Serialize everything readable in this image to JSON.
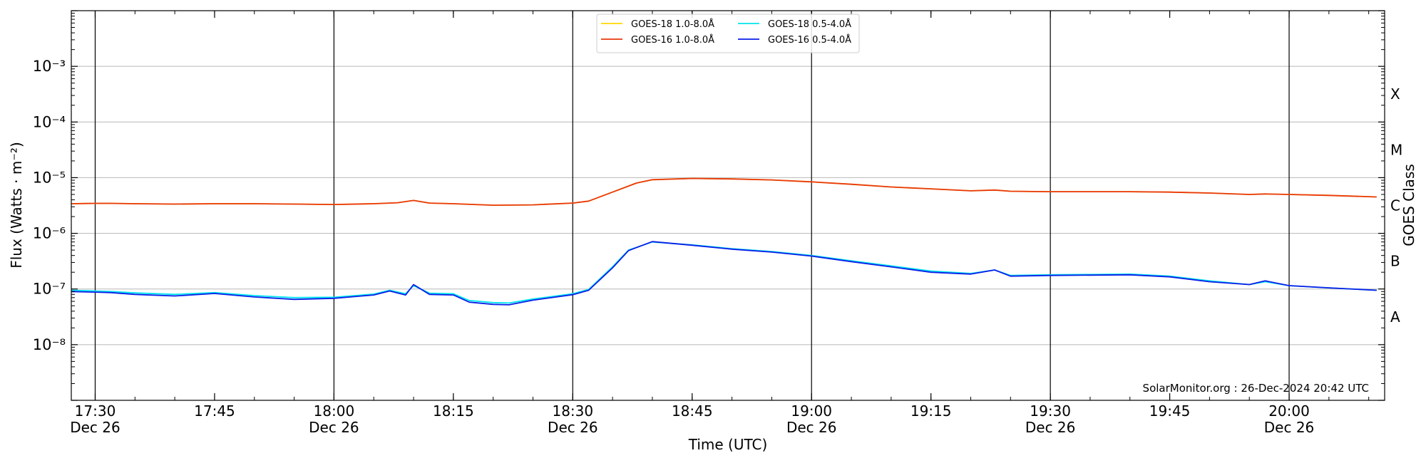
{
  "chart_data": {
    "type": "line",
    "xlabel": "Time (UTC)",
    "ylabel": "Flux (Watts · m⁻²)",
    "y2label": "GOES Class",
    "credit": "SolarMonitor.org : 26-Dec-2024 20:42 UTC",
    "y_scale": "log",
    "ylim": [
      1e-09,
      0.01
    ],
    "y_ticks": [
      "10⁻³",
      "10⁻⁴",
      "10⁻⁵",
      "10⁻⁶",
      "10⁻⁷",
      "10⁻⁸"
    ],
    "y_tick_exponents": [
      -3,
      -4,
      -5,
      -6,
      -7,
      -8
    ],
    "xlim": [
      "17:27",
      "20:12"
    ],
    "x_ticks": [
      {
        "t": "17:30",
        "label": "17:30",
        "sublabel": "Dec 26"
      },
      {
        "t": "17:45",
        "label": "17:45",
        "sublabel": ""
      },
      {
        "t": "18:00",
        "label": "18:00",
        "sublabel": "Dec 26"
      },
      {
        "t": "18:15",
        "label": "18:15",
        "sublabel": ""
      },
      {
        "t": "18:30",
        "label": "18:30",
        "sublabel": "Dec 26"
      },
      {
        "t": "18:45",
        "label": "18:45",
        "sublabel": ""
      },
      {
        "t": "19:00",
        "label": "19:00",
        "sublabel": "Dec 26"
      },
      {
        "t": "19:15",
        "label": "19:15",
        "sublabel": ""
      },
      {
        "t": "19:30",
        "label": "19:30",
        "sublabel": "Dec 26"
      },
      {
        "t": "19:45",
        "label": "19:45",
        "sublabel": ""
      },
      {
        "t": "20:00",
        "label": "20:00",
        "sublabel": "Dec 26"
      }
    ],
    "vlines": [
      "17:30",
      "18:00",
      "18:30",
      "19:00",
      "19:30",
      "20:00"
    ],
    "goes_classes": [
      {
        "label": "A",
        "exponent": -7.5
      },
      {
        "label": "B",
        "exponent": -6.5
      },
      {
        "label": "C",
        "exponent": -5.5
      },
      {
        "label": "M",
        "exponent": -4.5
      },
      {
        "label": "X",
        "exponent": -3.5
      }
    ],
    "grid": true,
    "legend_position": "top-center",
    "series": [
      {
        "name": "GOES-18 1.0-8.0Å",
        "color": "#ffd700",
        "x": [
          "17:27",
          "17:30",
          "17:32",
          "17:35",
          "17:40",
          "17:45",
          "17:50",
          "17:55",
          "18:00",
          "18:05",
          "18:08",
          "18:10",
          "18:12",
          "18:15",
          "18:20",
          "18:25",
          "18:30",
          "18:32",
          "18:35",
          "18:38",
          "18:40",
          "18:45",
          "18:50",
          "18:55",
          "19:00",
          "19:05",
          "19:10",
          "19:15",
          "19:20",
          "19:23",
          "19:25",
          "19:30",
          "19:40",
          "19:45",
          "19:50",
          "19:55",
          "19:57",
          "20:00",
          "20:05",
          "20:11"
        ],
        "y": [
          3.4e-06,
          3.45e-06,
          3.45e-06,
          3.4e-06,
          3.35e-06,
          3.4e-06,
          3.4e-06,
          3.35e-06,
          3.3e-06,
          3.4e-06,
          3.55e-06,
          3.9e-06,
          3.5e-06,
          3.4e-06,
          3.2e-06,
          3.25e-06,
          3.5e-06,
          3.8e-06,
          5.5e-06,
          8e-06,
          9.2e-06,
          9.7e-06,
          9.5e-06,
          9.1e-06,
          8.4e-06,
          7.6e-06,
          6.8e-06,
          6.3e-06,
          5.8e-06,
          6e-06,
          5.7e-06,
          5.6e-06,
          5.6e-06,
          5.5e-06,
          5.3e-06,
          5e-06,
          5.1e-06,
          5e-06,
          4.8e-06,
          4.5e-06
        ]
      },
      {
        "name": "GOES-16 1.0-8.0Å",
        "color": "#e8380d",
        "x": [
          "17:27",
          "17:30",
          "17:32",
          "17:35",
          "17:40",
          "17:45",
          "17:50",
          "17:55",
          "18:00",
          "18:05",
          "18:08",
          "18:10",
          "18:12",
          "18:15",
          "18:20",
          "18:25",
          "18:30",
          "18:32",
          "18:35",
          "18:38",
          "18:40",
          "18:45",
          "18:50",
          "18:55",
          "19:00",
          "19:05",
          "19:10",
          "19:15",
          "19:20",
          "19:23",
          "19:25",
          "19:30",
          "19:40",
          "19:45",
          "19:50",
          "19:55",
          "19:57",
          "20:00",
          "20:05",
          "20:11"
        ],
        "y": [
          3.4e-06,
          3.45e-06,
          3.45e-06,
          3.4e-06,
          3.35e-06,
          3.4e-06,
          3.4e-06,
          3.35e-06,
          3.3e-06,
          3.4e-06,
          3.55e-06,
          3.9e-06,
          3.5e-06,
          3.4e-06,
          3.2e-06,
          3.25e-06,
          3.5e-06,
          3.8e-06,
          5.5e-06,
          8e-06,
          9.2e-06,
          9.7e-06,
          9.5e-06,
          9.1e-06,
          8.4e-06,
          7.6e-06,
          6.8e-06,
          6.3e-06,
          5.8e-06,
          6e-06,
          5.7e-06,
          5.6e-06,
          5.6e-06,
          5.5e-06,
          5.3e-06,
          5e-06,
          5.1e-06,
          5e-06,
          4.8e-06,
          4.5e-06
        ]
      },
      {
        "name": "GOES-18 0.5-4.0Å",
        "color": "#00e5ee",
        "x": [
          "17:27",
          "17:30",
          "17:32",
          "17:35",
          "17:40",
          "17:45",
          "17:50",
          "17:55",
          "18:00",
          "18:05",
          "18:07",
          "18:09",
          "18:10",
          "18:12",
          "18:15",
          "18:17",
          "18:20",
          "18:22",
          "18:25",
          "18:30",
          "18:32",
          "18:35",
          "18:37",
          "18:40",
          "18:45",
          "18:50",
          "18:55",
          "19:00",
          "19:05",
          "19:10",
          "19:15",
          "19:20",
          "19:23",
          "19:25",
          "19:30",
          "19:40",
          "19:45",
          "19:50",
          "19:55",
          "19:57",
          "20:00",
          "20:05",
          "20:11"
        ],
        "y": [
          9.5e-08,
          9.2e-08,
          9e-08,
          8.5e-08,
          8e-08,
          8.6e-08,
          7.6e-08,
          7e-08,
          7.1e-08,
          8.1e-08,
          9.5e-08,
          8.2e-08,
          1.15e-07,
          8.4e-08,
          8.2e-08,
          6.2e-08,
          5.7e-08,
          5.6e-08,
          6.6e-08,
          8.2e-08,
          9.8e-08,
          2.5e-07,
          5e-07,
          7e-07,
          6.2e-07,
          5.3e-07,
          4.7e-07,
          4e-07,
          3.2e-07,
          2.6e-07,
          2.1e-07,
          1.9e-07,
          2.2e-07,
          1.75e-07,
          1.8e-07,
          1.85e-07,
          1.7e-07,
          1.4e-07,
          1.2e-07,
          1.35e-07,
          1.15e-07,
          1.05e-07,
          9.5e-08
        ]
      },
      {
        "name": "GOES-16 0.5-4.0Å",
        "color": "#0a1ee8",
        "x": [
          "17:27",
          "17:30",
          "17:32",
          "17:35",
          "17:40",
          "17:45",
          "17:50",
          "17:55",
          "18:00",
          "18:05",
          "18:07",
          "18:09",
          "18:10",
          "18:12",
          "18:15",
          "18:17",
          "18:20",
          "18:22",
          "18:25",
          "18:30",
          "18:32",
          "18:35",
          "18:37",
          "18:40",
          "18:45",
          "18:50",
          "18:55",
          "19:00",
          "19:05",
          "19:10",
          "19:15",
          "19:20",
          "19:23",
          "19:25",
          "19:30",
          "19:40",
          "19:45",
          "19:50",
          "19:55",
          "19:57",
          "20:00",
          "20:05",
          "20:11"
        ],
        "y": [
          9e-08,
          8.8e-08,
          8.6e-08,
          8e-08,
          7.5e-08,
          8.3e-08,
          7.2e-08,
          6.5e-08,
          6.8e-08,
          7.8e-08,
          9.2e-08,
          7.8e-08,
          1.2e-07,
          8e-08,
          7.8e-08,
          5.8e-08,
          5.3e-08,
          5.2e-08,
          6.3e-08,
          7.9e-08,
          9.5e-08,
          2.4e-07,
          4.9e-07,
          7.1e-07,
          6.1e-07,
          5.2e-07,
          4.6e-07,
          3.9e-07,
          3.1e-07,
          2.5e-07,
          2e-07,
          1.85e-07,
          2.2e-07,
          1.7e-07,
          1.75e-07,
          1.8e-07,
          1.65e-07,
          1.35e-07,
          1.2e-07,
          1.4e-07,
          1.15e-07,
          1.05e-07,
          9.5e-08
        ]
      }
    ]
  }
}
